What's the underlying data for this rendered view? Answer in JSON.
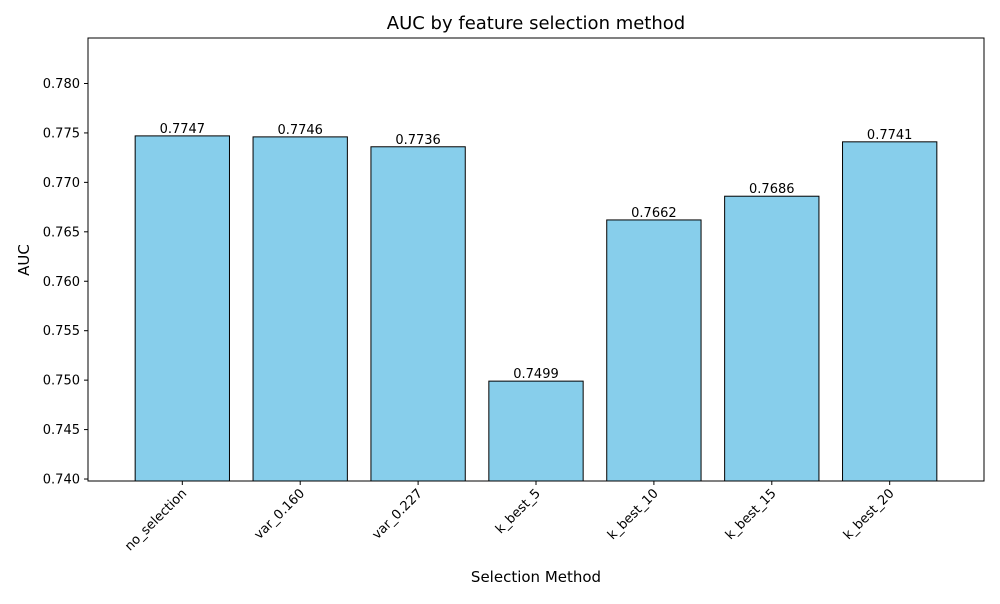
{
  "chart_data": {
    "type": "bar",
    "title": "AUC by feature selection method",
    "xlabel": "Selection Method",
    "ylabel": "AUC",
    "categories": [
      "no_selection",
      "var_0.160",
      "var_0.227",
      "k_best_5",
      "k_best_10",
      "k_best_15",
      "k_best_20"
    ],
    "values": [
      0.7747,
      0.7746,
      0.7736,
      0.7499,
      0.7662,
      0.7686,
      0.7741
    ],
    "value_labels": [
      "0.7747",
      "0.7746",
      "0.7736",
      "0.7499",
      "0.7662",
      "0.7686",
      "0.7741"
    ],
    "ylim": [
      0.7398,
      0.7846
    ],
    "yticks": [
      0.74,
      0.745,
      0.75,
      0.755,
      0.76,
      0.765,
      0.77,
      0.775,
      0.78
    ],
    "ytick_labels": [
      "0.740",
      "0.745",
      "0.750",
      "0.755",
      "0.760",
      "0.765",
      "0.770",
      "0.775",
      "0.780"
    ],
    "grid": false,
    "colors": {
      "bar_fill": "#87CEEB",
      "bar_edge": "#000000",
      "axis": "#000000",
      "background": "#ffffff"
    }
  }
}
